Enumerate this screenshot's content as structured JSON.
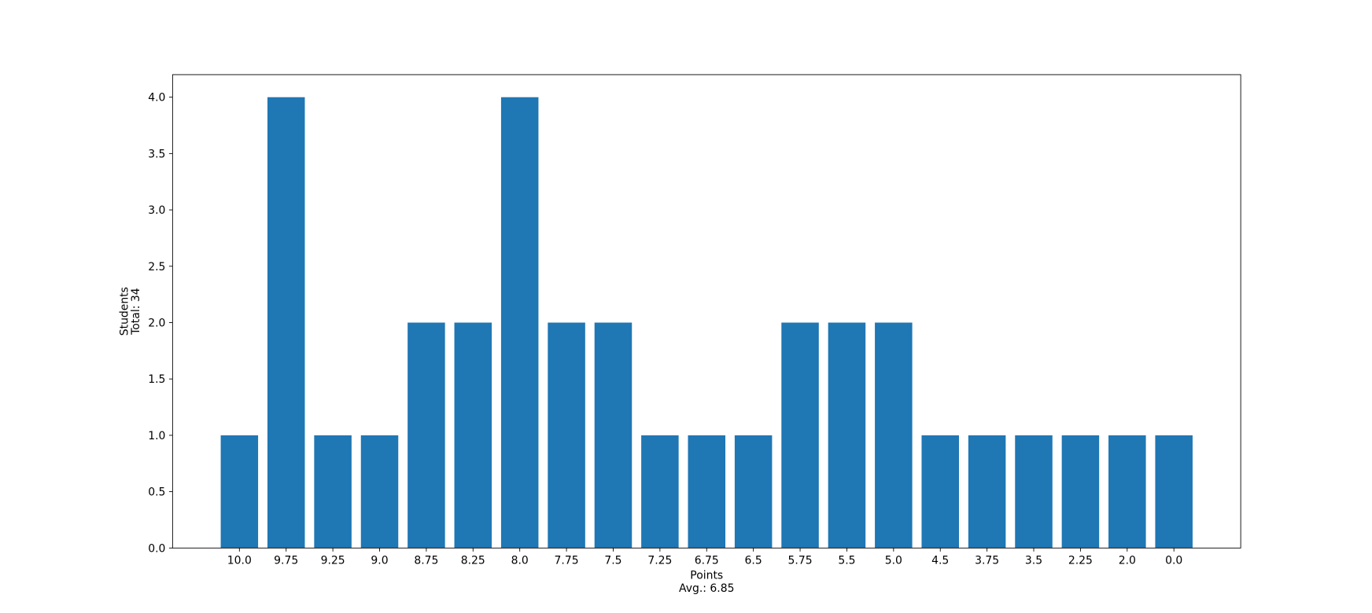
{
  "chart_data": {
    "type": "bar",
    "categories": [
      "10.0",
      "9.75",
      "9.25",
      "9.0",
      "8.75",
      "8.25",
      "8.0",
      "7.75",
      "7.5",
      "7.25",
      "6.75",
      "6.5",
      "5.75",
      "5.5",
      "5.0",
      "4.5",
      "3.75",
      "3.5",
      "2.25",
      "2.0",
      "0.0"
    ],
    "values": [
      1,
      4,
      1,
      1,
      2,
      2,
      4,
      2,
      2,
      1,
      1,
      1,
      2,
      2,
      2,
      1,
      1,
      1,
      1,
      1,
      1
    ],
    "color": "#1f77b4",
    "x_label": [
      "Points",
      "Avg.: 6.85"
    ],
    "y_label": [
      "Students",
      "Total: 34"
    ],
    "ylim": [
      0,
      4.2
    ],
    "yticks": [
      {
        "value": 0,
        "label": "0.0"
      },
      {
        "value": 0.5,
        "label": "0.5"
      },
      {
        "value": 1,
        "label": "1.0"
      },
      {
        "value": 1.5,
        "label": "1.5"
      },
      {
        "value": 2,
        "label": "2.0"
      },
      {
        "value": 2.5,
        "label": "2.5"
      },
      {
        "value": 3,
        "label": "3.0"
      },
      {
        "value": 3.5,
        "label": "3.5"
      },
      {
        "value": 4,
        "label": "4.0"
      }
    ],
    "grid": false
  }
}
